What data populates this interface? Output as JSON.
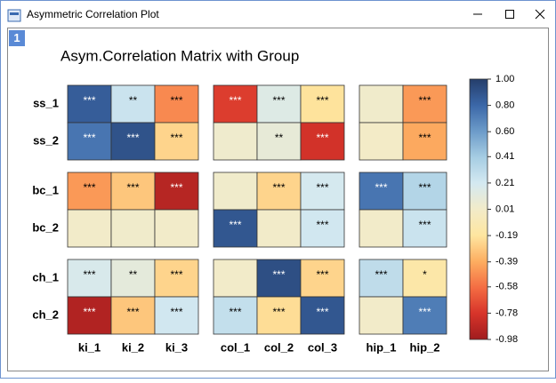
{
  "window_title": "Asymmetric Correlation Plot",
  "page_tab": "1",
  "chart_data": {
    "type": "heatmap",
    "title": "Asym.Correlation Matrix with Group",
    "rows": [
      "ss_1",
      "ss_2",
      "bc_1",
      "bc_2",
      "ch_1",
      "ch_2"
    ],
    "columns": [
      "ki_1",
      "ki_2",
      "ki_3",
      "col_1",
      "col_2",
      "col_3",
      "hip_1",
      "hip_2"
    ],
    "values": [
      [
        0.85,
        0.25,
        -0.5,
        -0.75,
        0.15,
        -0.2,
        0.02,
        -0.45
      ],
      [
        0.75,
        0.9,
        -0.25,
        0.03,
        0.08,
        -0.8,
        0.0,
        -0.4
      ],
      [
        -0.45,
        -0.3,
        -0.9,
        0.02,
        -0.25,
        0.2,
        0.75,
        0.35
      ],
      [
        0.01,
        0.02,
        0.01,
        0.88,
        0.01,
        0.22,
        0.01,
        0.25
      ],
      [
        0.18,
        0.1,
        -0.25,
        0.01,
        0.92,
        -0.25,
        0.3,
        -0.15
      ],
      [
        -0.92,
        -0.3,
        0.22,
        0.28,
        -0.22,
        0.88,
        0.01,
        0.72
      ]
    ],
    "annotations": [
      [
        "***",
        "**",
        "***",
        "***",
        "***",
        "***",
        null,
        "***"
      ],
      [
        "***",
        "***",
        "***",
        null,
        "**",
        "***",
        null,
        "***"
      ],
      [
        "***",
        "***",
        "***",
        null,
        "***",
        "***",
        "***",
        "***"
      ],
      [
        null,
        null,
        null,
        "***",
        null,
        "***",
        null,
        "***"
      ],
      [
        "***",
        "**",
        "***",
        null,
        "***",
        "***",
        "***",
        "*"
      ],
      [
        "***",
        "***",
        "***",
        "***",
        "***",
        "***",
        null,
        "***"
      ]
    ],
    "zlim": [
      -0.98,
      1.0
    ],
    "zticks": [
      {
        "value": 1.0,
        "label": "1.00"
      },
      {
        "value": 0.8,
        "label": "0.80"
      },
      {
        "value": 0.6,
        "label": "0.60"
      },
      0.41,
      0.21,
      0.01,
      -0.19,
      -0.39,
      -0.58,
      -0.78,
      -0.98
    ],
    "colormap": [
      "#a01c1e",
      "#d7342a",
      "#f46d43",
      "#fdae61",
      "#fee6a0",
      "#f2ebc9",
      "#d4e9f1",
      "#a6cde3",
      "#6c9bc9",
      "#3b67a8",
      "#253e6b"
    ]
  }
}
